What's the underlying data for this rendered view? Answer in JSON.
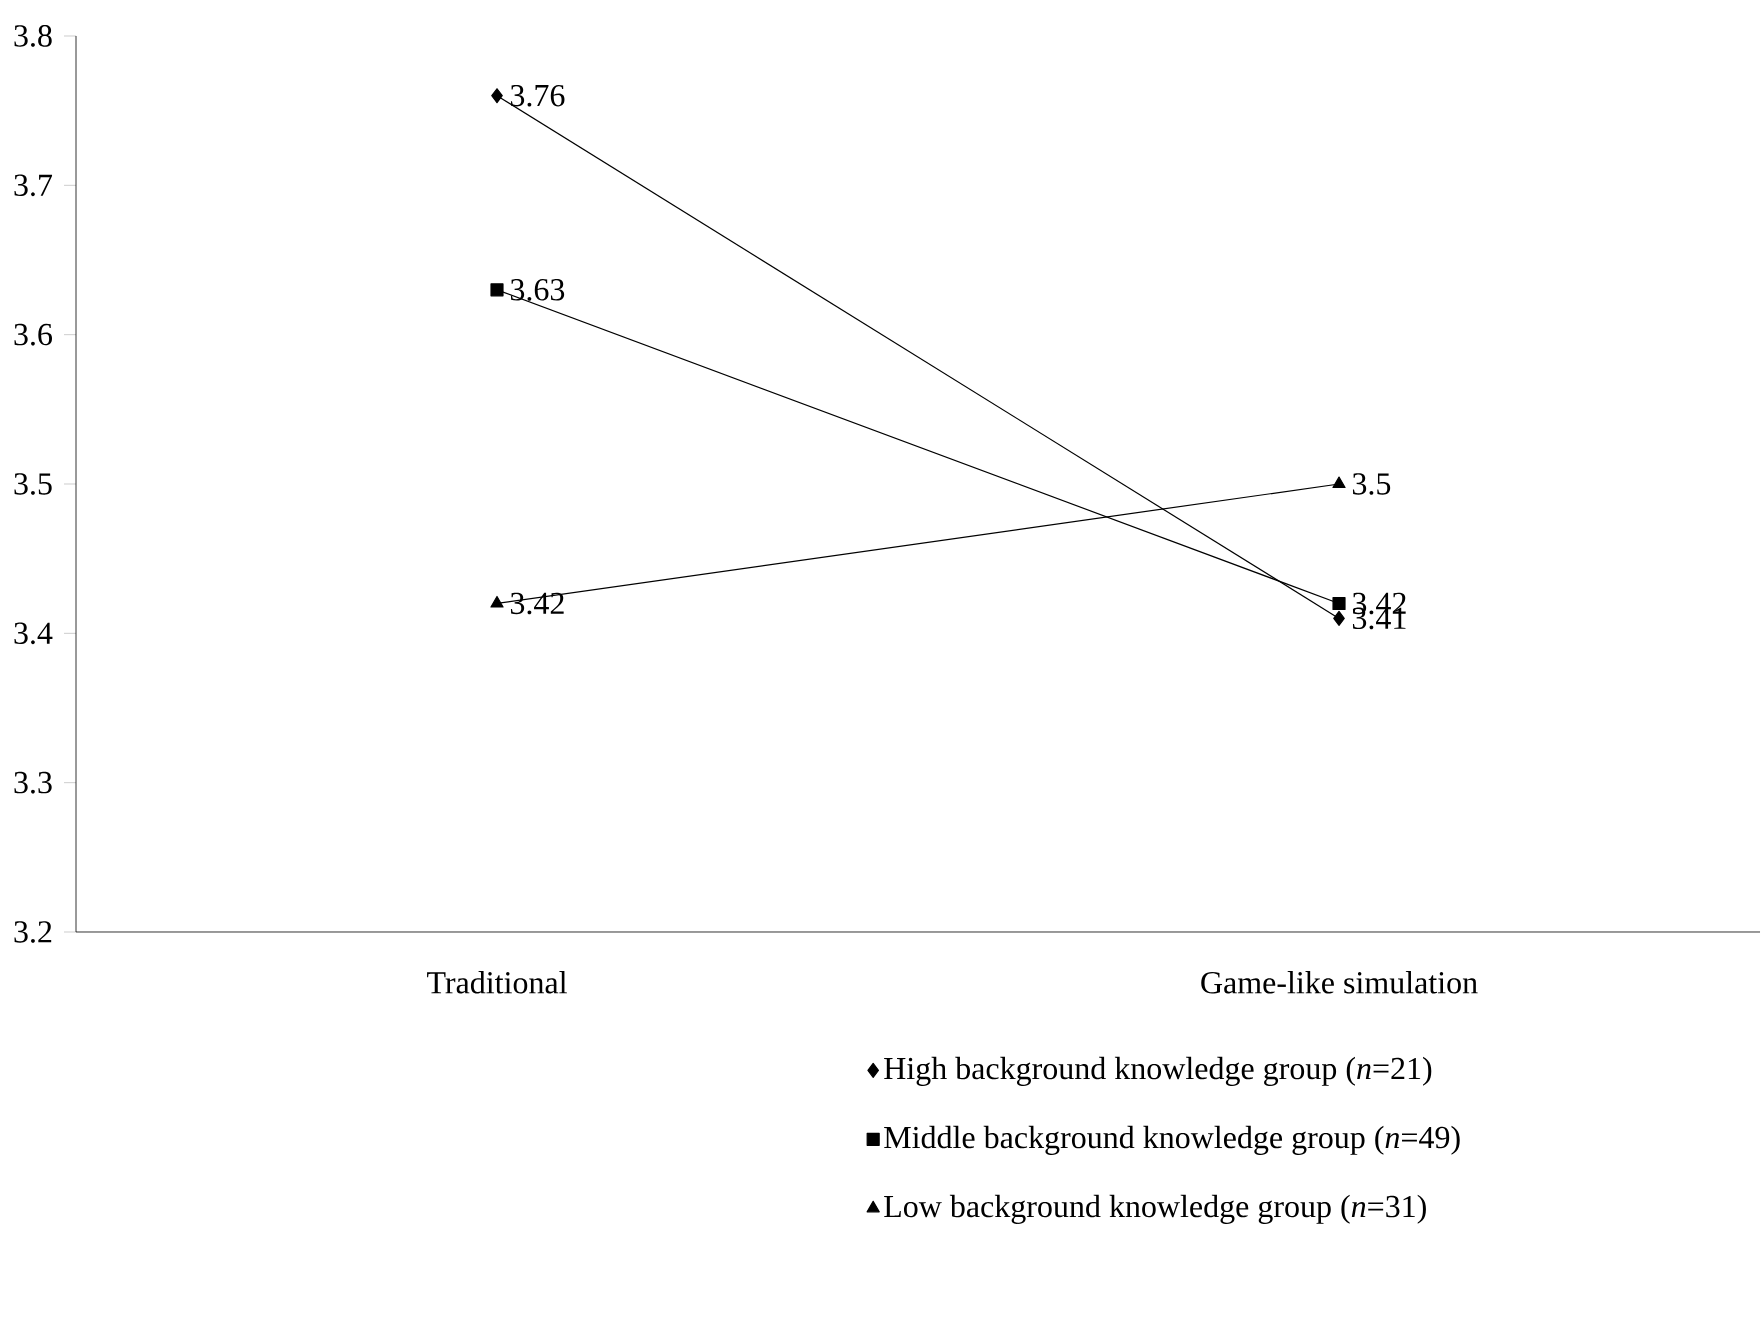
{
  "chart_data": {
    "type": "line",
    "categories": [
      "Traditional",
      "Game-like simulation"
    ],
    "series": [
      {
        "name": "High background knowledge group (*n*=21)",
        "color": "#000000",
        "marker": "diamond",
        "values": [
          3.76,
          3.41
        ]
      },
      {
        "name": "Middle background knowledge group (*n*=49)",
        "color": "#000000",
        "marker": "square",
        "values": [
          3.63,
          3.42
        ]
      },
      {
        "name": "Low background knowledge group (*n*=31)",
        "color": "#000000",
        "marker": "triangle",
        "values": [
          3.42,
          3.5
        ]
      }
    ],
    "ylim": [
      3.2,
      3.8
    ],
    "yticks": [
      3.2,
      3.3,
      3.4,
      3.5,
      3.6,
      3.7,
      3.8
    ],
    "data_labels": true,
    "legend": "bottom",
    "grid": false
  }
}
